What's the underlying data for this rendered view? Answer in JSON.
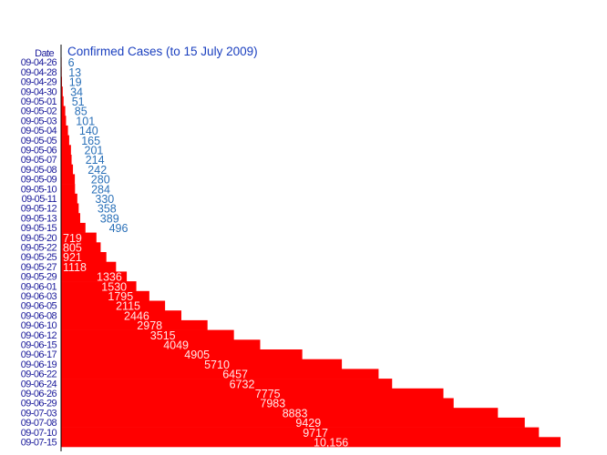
{
  "chart_data": {
    "type": "bar",
    "orientation": "horizontal",
    "title": "Confirmed Cases (to 15 July 2009)",
    "category_header": "Date",
    "categories": [
      "09-04-26",
      "09-04-28",
      "09-04-29",
      "09-04-30",
      "09-05-01",
      "09-05-02",
      "09-05-03",
      "09-05-04",
      "09-05-05",
      "09-05-06",
      "09-05-07",
      "09-05-08",
      "09-05-09",
      "09-05-10",
      "09-05-11",
      "09-05-12",
      "09-05-13",
      "09-05-15",
      "09-05-20",
      "09-05-22",
      "09-05-25",
      "09-05-27",
      "09-05-29",
      "09-06-01",
      "09-06-03",
      "09-06-05",
      "09-06-08",
      "09-06-10",
      "09-06-12",
      "09-06-15",
      "09-06-17",
      "09-06-19",
      "09-06-22",
      "09-06-24",
      "09-06-26",
      "09-06-29",
      "09-07-03",
      "09-07-08",
      "09-07-10",
      "09-07-15"
    ],
    "values": [
      6,
      13,
      19,
      34,
      51,
      85,
      101,
      140,
      165,
      201,
      214,
      242,
      280,
      284,
      330,
      358,
      389,
      496,
      719,
      805,
      921,
      1118,
      1336,
      1530,
      1795,
      2115,
      2446,
      2978,
      3515,
      4049,
      4905,
      5710,
      6457,
      6732,
      7775,
      7983,
      8883,
      9429,
      9717,
      10156
    ],
    "value_labels": [
      "6",
      "13",
      "19",
      "34",
      "51",
      "85",
      "101",
      "140",
      "165",
      "201",
      "214",
      "242",
      "280",
      "284",
      "330",
      "358",
      "389",
      "496",
      "719",
      "805",
      "921",
      "1118",
      "1336",
      "1530",
      "1795",
      "2115",
      "2446",
      "2978",
      "3515",
      "4049",
      "4905",
      "5710",
      "6457",
      "6732",
      "7775",
      "7983",
      "8883",
      "9429",
      "9717",
      "10,156"
    ],
    "xlim": [
      0,
      10156
    ],
    "grid": false,
    "legend": "none",
    "colors": {
      "bar": "#ff0000",
      "date_text": "#1a1a9a",
      "title": "#1a3fbf",
      "small_value_text": "#2a70b8",
      "large_value_text": "#ffe8e8"
    }
  }
}
